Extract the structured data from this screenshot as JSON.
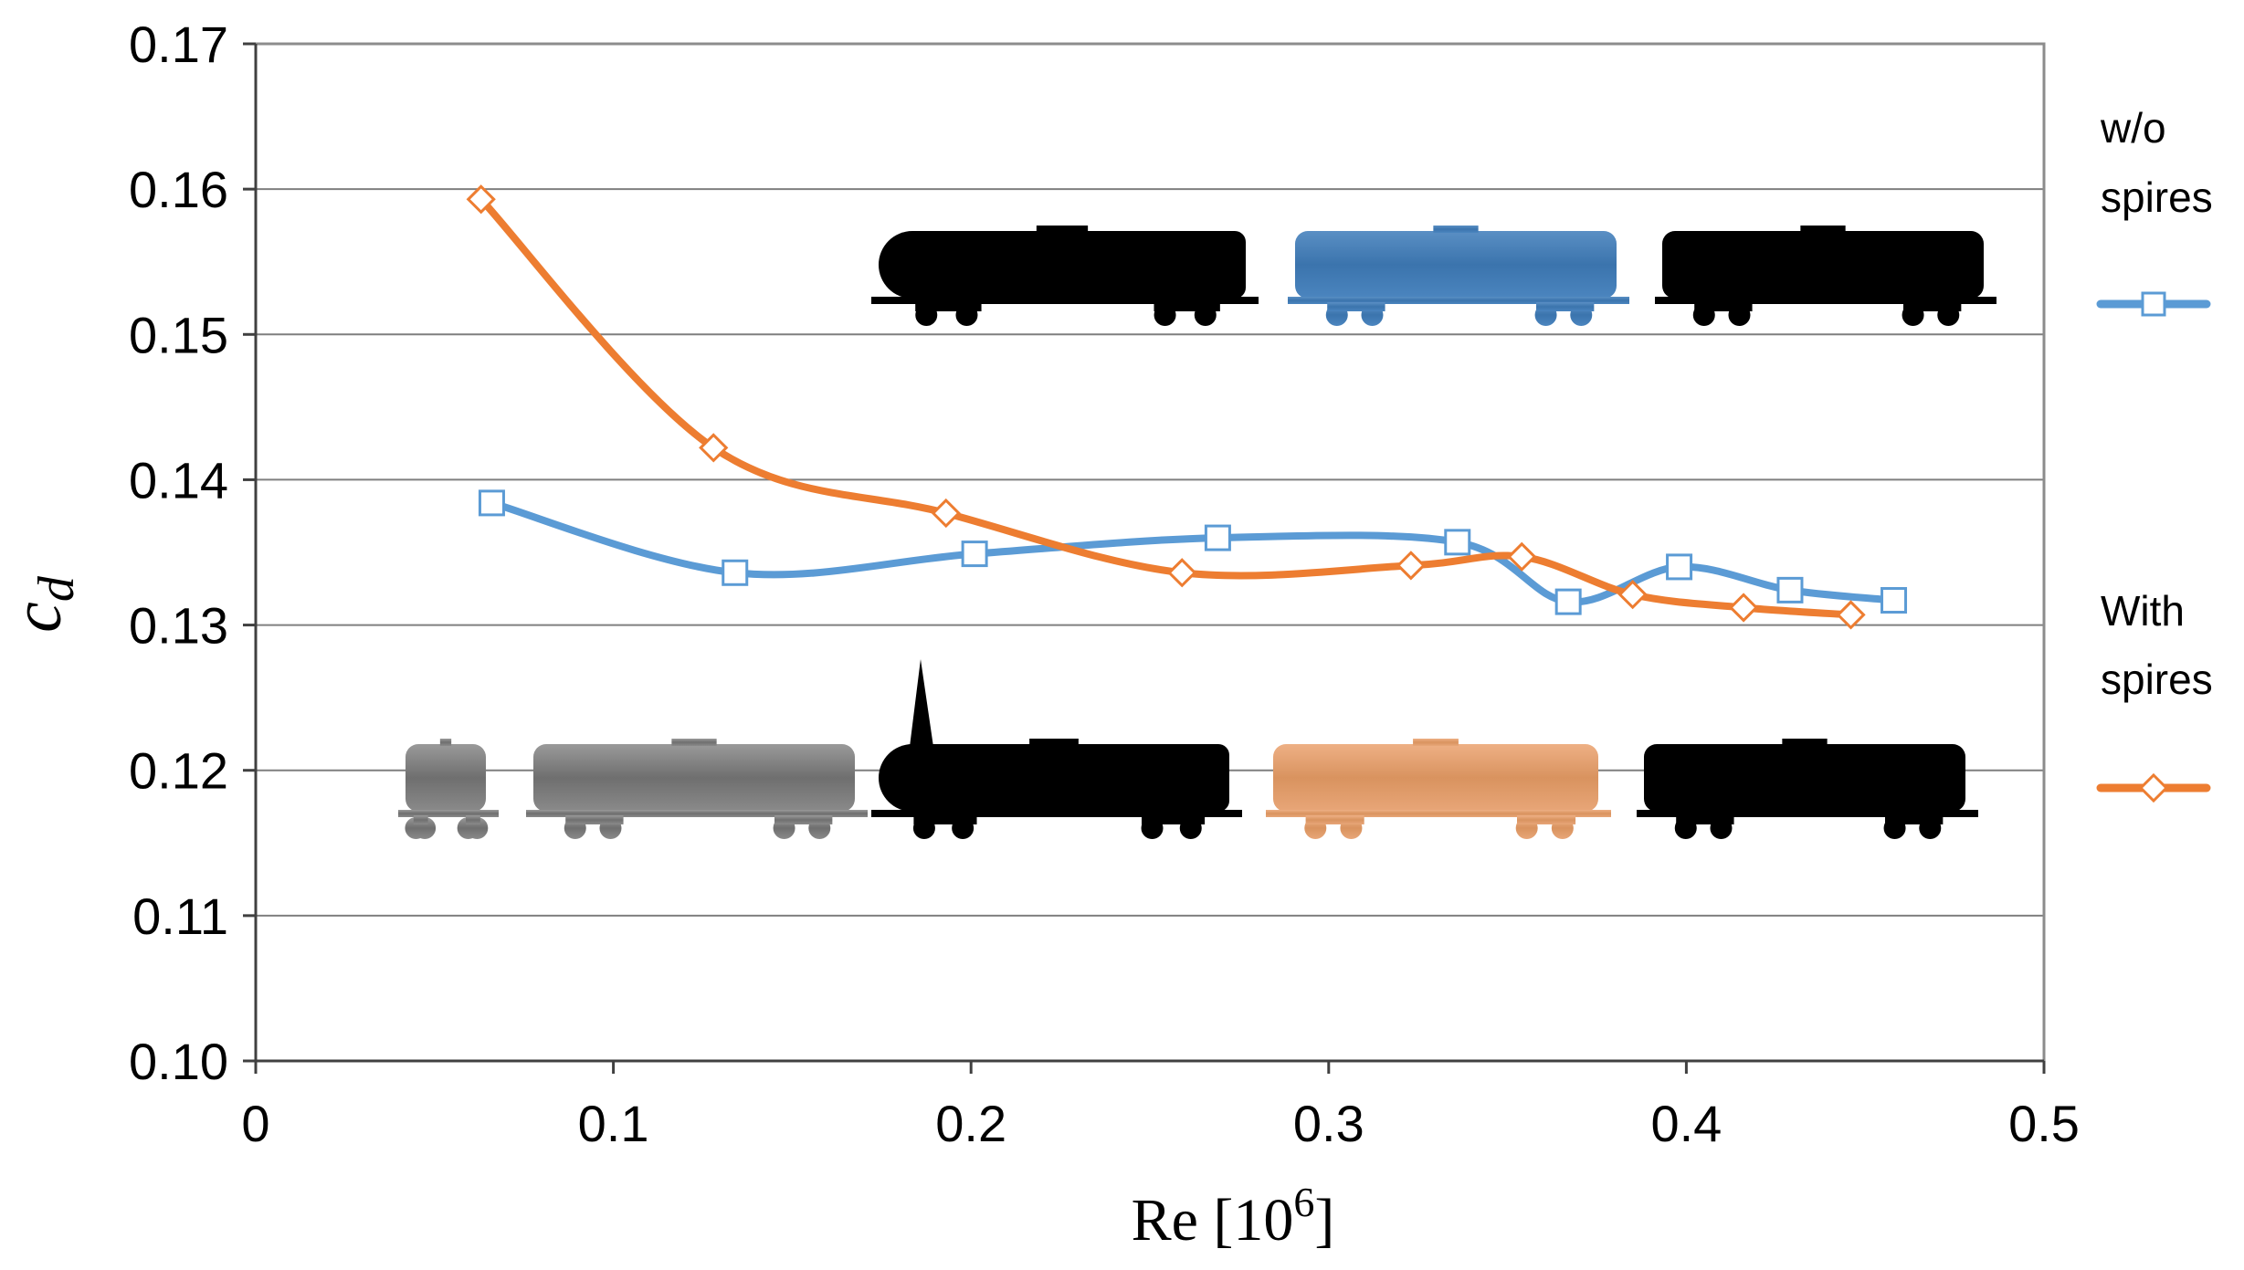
{
  "chart_data": {
    "type": "line",
    "xlabel": "Re  [10",
    "xlabel_sup": "6",
    "xlabel_end": "]",
    "ylabel": "c",
    "ylabel_sub": "d",
    "xlim": [
      0,
      0.5
    ],
    "ylim": [
      0.1,
      0.17
    ],
    "x_ticks": [
      "0",
      "0.1",
      "0.2",
      "0.3",
      "0.4",
      "0.5"
    ],
    "y_ticks": [
      "0.10",
      "0.11",
      "0.12",
      "0.13",
      "0.14",
      "0.15",
      "0.16",
      "0.17"
    ],
    "grid": "horizontal",
    "legend_position": "right",
    "series": [
      {
        "name": "w/o spires",
        "name_lines": [
          "w/o",
          "spires"
        ],
        "color": "#5b9bd5",
        "marker": "square",
        "x": [
          0.066,
          0.134,
          0.201,
          0.269,
          0.336,
          0.367,
          0.398,
          0.429,
          0.458
        ],
        "y": [
          0.1384,
          0.1336,
          0.1349,
          0.136,
          0.1357,
          0.1316,
          0.134,
          0.1324,
          0.1317
        ]
      },
      {
        "name": "With spires",
        "name_lines": [
          "With",
          "spires"
        ],
        "color": "#ed7d31",
        "marker": "diamond",
        "x": [
          0.063,
          0.128,
          0.193,
          0.259,
          0.323,
          0.354,
          0.385,
          0.416,
          0.446
        ],
        "y": [
          0.1593,
          0.1422,
          0.1377,
          0.1336,
          0.1341,
          0.1347,
          0.1321,
          0.1312,
          0.1307
        ]
      }
    ],
    "annotations": [
      {
        "type": "train-silhouette",
        "row": "upper",
        "cars": [
          "black",
          "blue",
          "black"
        ]
      },
      {
        "type": "train-silhouette",
        "row": "lower",
        "cars": [
          "gray",
          "gray",
          "black-with-spire",
          "orange",
          "black"
        ]
      }
    ],
    "colors": {
      "blue": "#5b9bd5",
      "orange": "#ed7d31",
      "gray": "#808080",
      "black": "#000000"
    }
  }
}
